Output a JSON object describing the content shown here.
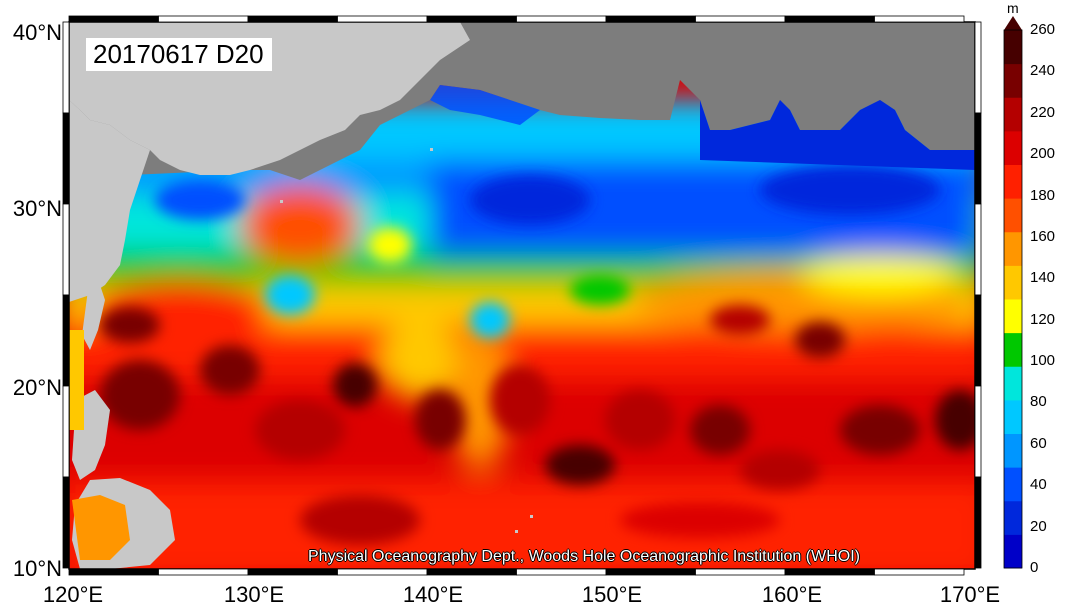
{
  "title": "20170617 D20",
  "credit": "Physical Oceanography Dept., Woods Hole Oceanographic Institution (WHOI)",
  "axes": {
    "lon_labels": [
      "120°E",
      "130°E",
      "140°E",
      "150°E",
      "160°E",
      "170°E"
    ],
    "lat_labels": [
      "40°N",
      "30°N",
      "20°N",
      "10°N"
    ]
  },
  "colorbar": {
    "unit": "m",
    "ticks": [
      "260",
      "240",
      "220",
      "200",
      "180",
      "160",
      "140",
      "120",
      "100",
      "80",
      "60",
      "40",
      "20",
      "0"
    ],
    "colors": [
      "#0000c8",
      "#0028dc",
      "#0050ff",
      "#0096ff",
      "#00c8ff",
      "#00e6dc",
      "#00c800",
      "#ffff00",
      "#ffc800",
      "#ff9600",
      "#ff5000",
      "#ff2000",
      "#dc0000",
      "#b40000",
      "#780000",
      "#460000"
    ]
  },
  "map": {
    "land_color": "#c8c8c8",
    "nodata_color": "#7d7d7d"
  }
}
